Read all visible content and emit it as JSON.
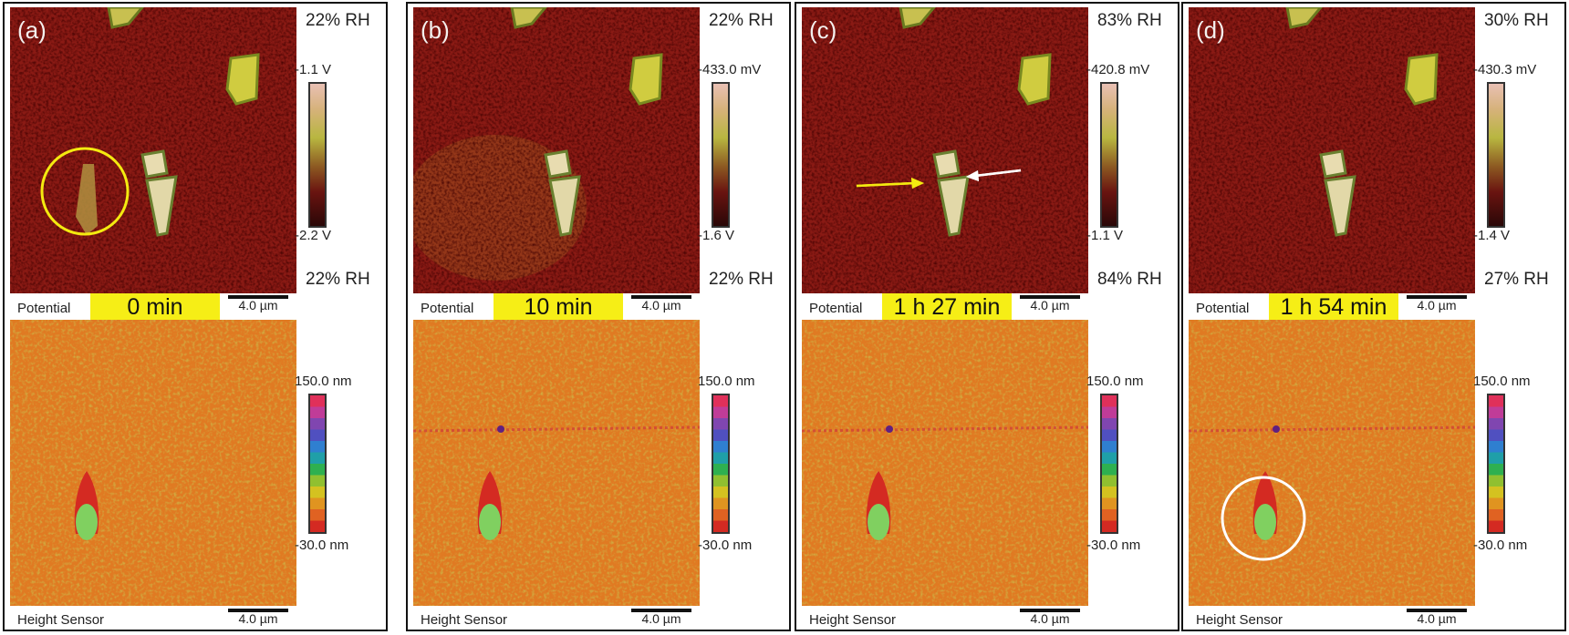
{
  "panels": [
    {
      "label": "(a)",
      "rh_top": "22% RH",
      "rh_bottom": "22% RH",
      "pot_max": "-1.1 V",
      "pot_min": "-2.2 V",
      "time": "0 min",
      "annotation": "yellow-circle"
    },
    {
      "label": "(b)",
      "rh_top": "22% RH",
      "rh_bottom": "22% RH",
      "pot_max": "-433.0 mV",
      "pot_min": "-1.6 V",
      "time": "10 min",
      "annotation": "none"
    },
    {
      "label": "(c)",
      "rh_top": "83% RH",
      "rh_bottom": "84% RH",
      "pot_max": "-420.8 mV",
      "pot_min": "-1.1 V",
      "time": "1 h 27 min",
      "annotation": "arrows"
    },
    {
      "label": "(d)",
      "rh_top": "30% RH",
      "rh_bottom": "27% RH",
      "pot_max": "-430.3 mV",
      "pot_min": "-1.4 V",
      "time": "1 h 54 min",
      "annotation": "white-circle"
    }
  ],
  "common": {
    "potential_label": "Potential",
    "height_label": "Height Sensor",
    "scale_bar": "4.0 µm",
    "height_max": "150.0 nm",
    "height_min": "-30.0 nm"
  },
  "colors": {
    "highlight": "#f6ee16",
    "potential_bg": "#8a1a14",
    "height_bg": "#e07a22"
  }
}
